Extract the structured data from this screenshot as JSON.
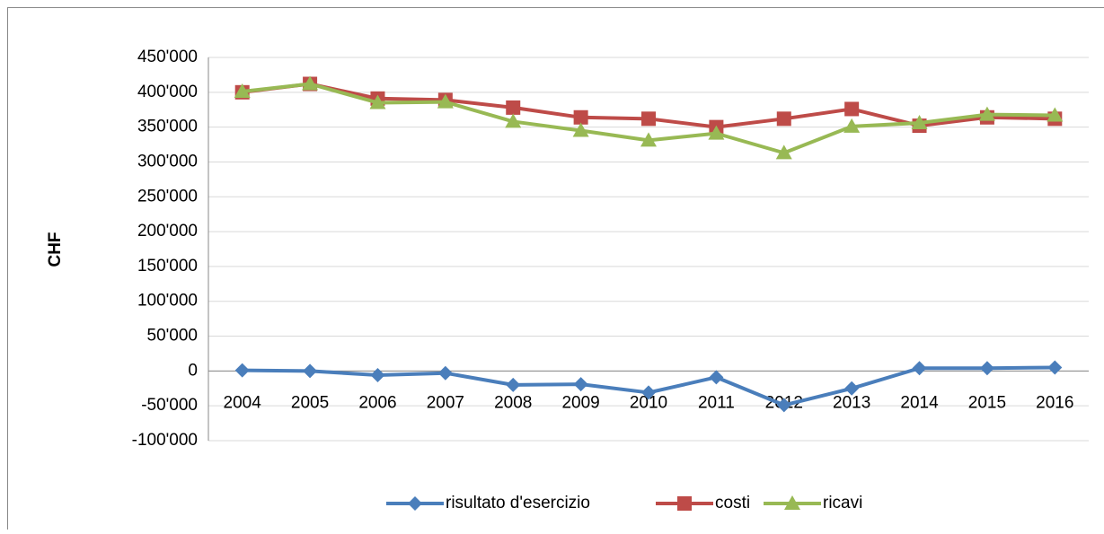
{
  "chart_data": {
    "type": "line",
    "y_label": "CHF",
    "categories": [
      "2004",
      "2005",
      "2006",
      "2007",
      "2008",
      "2009",
      "2010",
      "2011",
      "2012",
      "2013",
      "2014",
      "2015",
      "2016"
    ],
    "series": [
      {
        "name": "risultato d'esercizio",
        "color": "#4a7ebb",
        "marker": "diamond",
        "values": [
          1000,
          0,
          -6000,
          -3000,
          -20000,
          -19000,
          -31000,
          -9000,
          -49000,
          -25000,
          4000,
          4000,
          5000
        ]
      },
      {
        "name": "costi",
        "color": "#be4b48",
        "marker": "square",
        "values": [
          400000,
          412000,
          391000,
          389000,
          378000,
          364000,
          362000,
          350000,
          362000,
          376000,
          352000,
          364000,
          362000
        ]
      },
      {
        "name": "ricavi",
        "color": "#98b954",
        "marker": "triangle",
        "values": [
          401000,
          412000,
          385000,
          386000,
          358000,
          345000,
          331000,
          341000,
          313000,
          351000,
          356000,
          368000,
          367000
        ]
      }
    ],
    "ylim": [
      -100000,
      450000
    ],
    "yticks": [
      {
        "value": -100000,
        "label": "-100'000"
      },
      {
        "value": -50000,
        "label": "-50'000"
      },
      0,
      {
        "value": 50000,
        "label": "50'000"
      },
      {
        "value": 100000,
        "label": "100'000"
      },
      {
        "value": 150000,
        "label": "150'000"
      },
      {
        "value": 200000,
        "label": "200'000"
      },
      {
        "value": 250000,
        "label": "250'000"
      },
      {
        "value": 300000,
        "label": "300'000"
      },
      {
        "value": 350000,
        "label": "350'000"
      },
      {
        "value": 400000,
        "label": "400'000"
      },
      {
        "value": 450000,
        "label": "450'000"
      }
    ],
    "grid": true,
    "legend": "bottom"
  }
}
